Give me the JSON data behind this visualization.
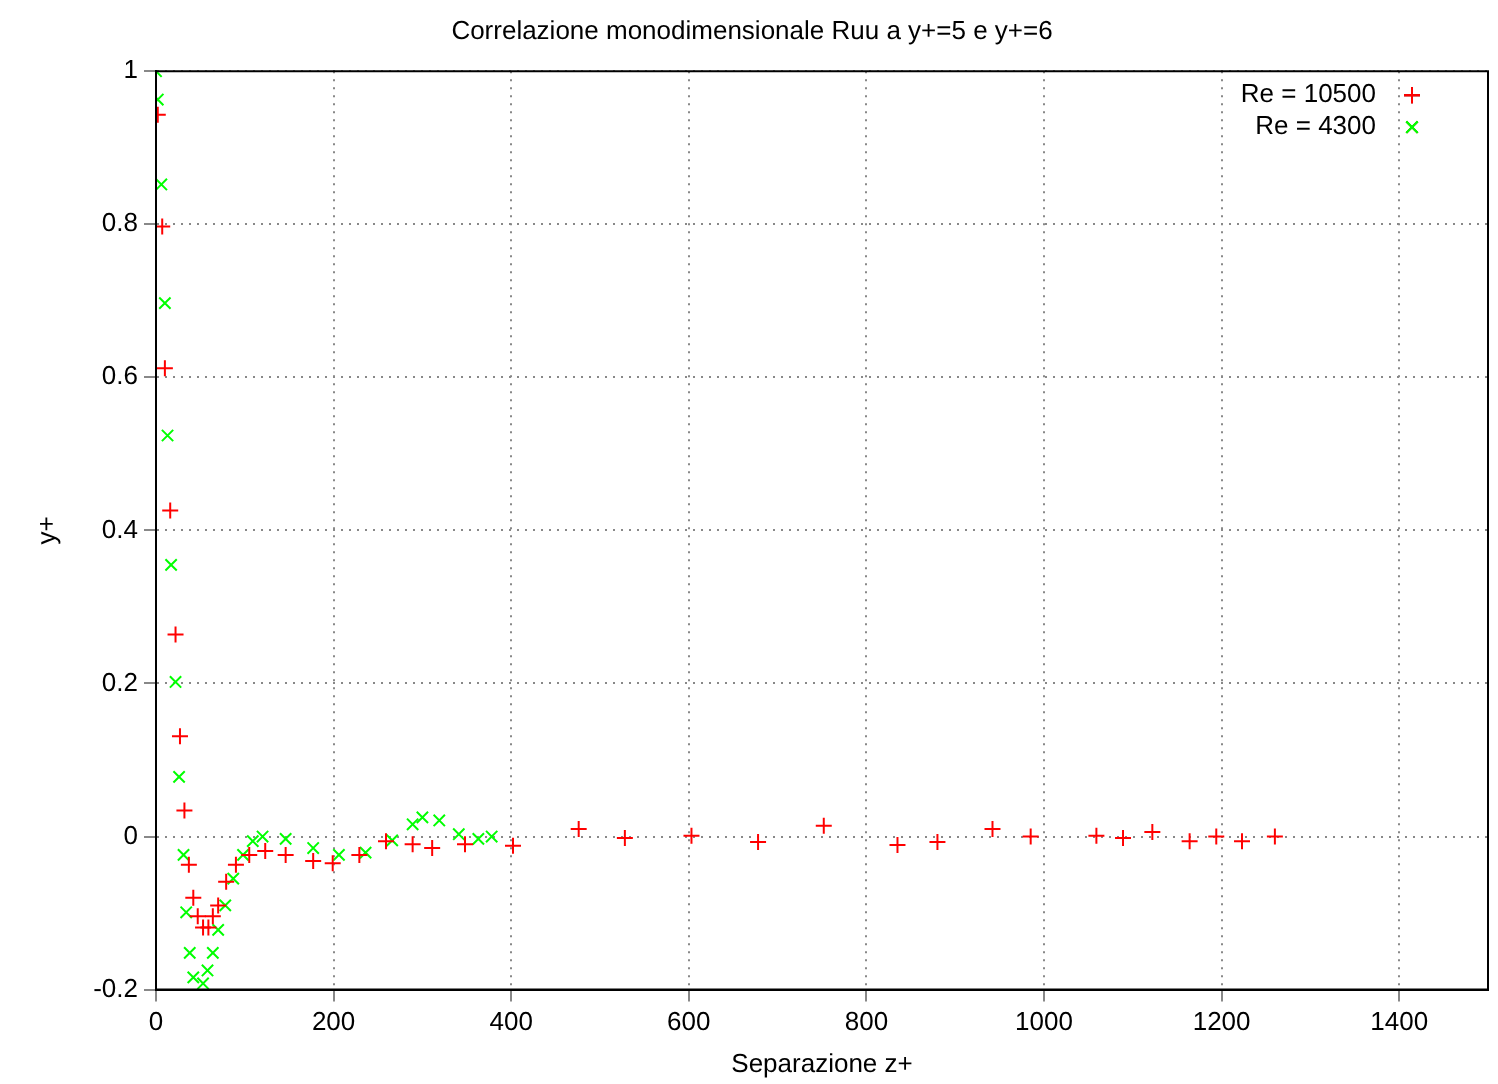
{
  "chart_data": {
    "type": "scatter",
    "title": "Correlazione monodimensionale Ruu a y+=5 e y+=6",
    "xlabel": "Separazione z+",
    "ylabel": "y+",
    "xlim": [
      0,
      1500
    ],
    "xticks": [
      0,
      200,
      400,
      600,
      800,
      1000,
      1200,
      1400
    ],
    "ylim": [
      -0.2,
      1
    ],
    "yticks": [
      -0.2,
      0,
      0.2,
      0.4,
      0.6,
      0.8,
      1
    ],
    "grid": true,
    "legend": "top right",
    "series": [
      {
        "name": "Re = 10500",
        "color": "#ff0000",
        "marker": "cross",
        "x": [
          2,
          7,
          10,
          16,
          22,
          27,
          32,
          37,
          42,
          47,
          53,
          59,
          64,
          70,
          79,
          90,
          105,
          123,
          146,
          177,
          199,
          229,
          259,
          289,
          311,
          348,
          402,
          476,
          528,
          603,
          678,
          752,
          835,
          880,
          942,
          985,
          1059,
          1089,
          1122,
          1164,
          1194,
          1223,
          1260
        ],
        "values": [
          0.943,
          0.797,
          0.612,
          0.426,
          0.264,
          0.131,
          0.034,
          -0.037,
          -0.08,
          -0.104,
          -0.119,
          -0.119,
          -0.104,
          -0.09,
          -0.059,
          -0.037,
          -0.024,
          -0.019,
          -0.024,
          -0.032,
          -0.035,
          -0.024,
          -0.006,
          -0.01,
          -0.015,
          -0.01,
          -0.012,
          0.01,
          -0.002,
          0.001,
          -0.007,
          0.014,
          -0.011,
          -0.007,
          0.01,
          0,
          0.001,
          -0.002,
          0.006,
          -0.006,
          0,
          -0.006,
          0
        ]
      },
      {
        "name": "Re = 4300",
        "color": "#00ff00",
        "marker": "x",
        "x": [
          0,
          2,
          6,
          10,
          13,
          17,
          22,
          26,
          31,
          34,
          38,
          42,
          53,
          58,
          64,
          70,
          78,
          87,
          98,
          109,
          120,
          146,
          177,
          206,
          236,
          266,
          289,
          300,
          319,
          341,
          363,
          378
        ],
        "values": [
          1,
          0.963,
          0.852,
          0.697,
          0.524,
          0.355,
          0.202,
          0.078,
          -0.024,
          -0.099,
          -0.152,
          -0.184,
          -0.192,
          -0.175,
          -0.152,
          -0.122,
          -0.09,
          -0.055,
          -0.024,
          -0.006,
          0,
          -0.003,
          -0.015,
          -0.024,
          -0.021,
          -0.005,
          0.016,
          0.025,
          0.021,
          0.003,
          -0.003,
          0
        ]
      }
    ]
  }
}
